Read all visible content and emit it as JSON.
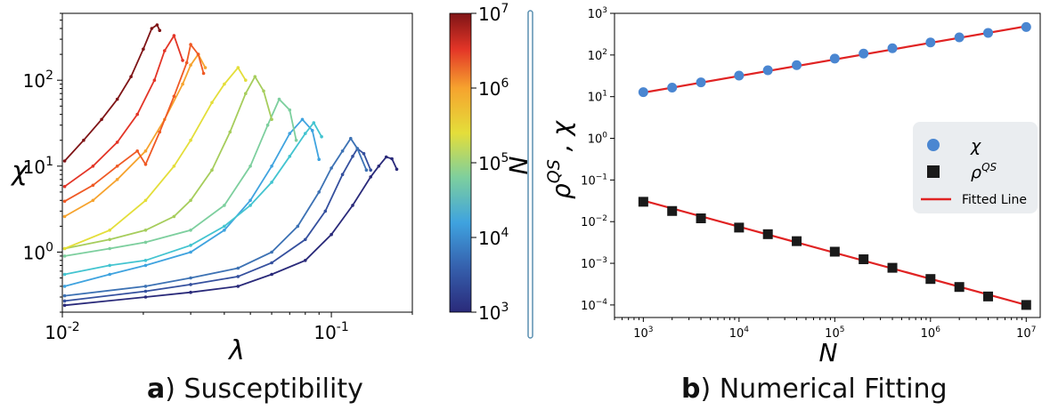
{
  "captions": {
    "a_letter": "a",
    "a_text": ") Susceptibility",
    "b_letter": "b",
    "b_text": ") Numerical Fitting"
  },
  "chart_data": [
    {
      "type": "line",
      "panel": "a",
      "xlabel": "λ",
      "ylabel": "χ",
      "xscale": "log",
      "yscale": "log",
      "xlim": [
        0.01,
        0.2
      ],
      "ylim": [
        0.2,
        600
      ],
      "x_ticks": [
        {
          "value": 0.01,
          "base": "10",
          "exp": "-2"
        },
        {
          "value": 0.1,
          "base": "10",
          "exp": "-1"
        }
      ],
      "y_ticks": [
        {
          "value": 1,
          "base": "10",
          "exp": "0"
        },
        {
          "value": 10,
          "base": "10",
          "exp": "1"
        },
        {
          "value": 100,
          "base": "10",
          "exp": "2"
        }
      ],
      "colorbar": {
        "label": "N",
        "range": [
          1000,
          10000000
        ],
        "ticks": [
          {
            "value": 1000,
            "base": "10",
            "exp": "3"
          },
          {
            "value": 10000,
            "base": "10",
            "exp": "4"
          },
          {
            "value": 100000,
            "base": "10",
            "exp": "5"
          },
          {
            "value": 1000000,
            "base": "10",
            "exp": "6"
          },
          {
            "value": 10000000,
            "base": "10",
            "exp": "7"
          }
        ]
      },
      "series": [
        {
          "N": 1000,
          "color": "#2a2a7a",
          "peak_lambda": 0.16,
          "peak_chi": 13,
          "x": [
            0.0102,
            0.0204,
            0.03,
            0.045,
            0.06,
            0.08,
            0.1,
            0.12,
            0.14,
            0.15,
            0.16,
            0.168,
            0.175
          ],
          "y": [
            0.24,
            0.3,
            0.34,
            0.4,
            0.55,
            0.8,
            1.6,
            3.5,
            7.5,
            10.0,
            12.8,
            12.2,
            9.2
          ]
        },
        {
          "N": 2000,
          "color": "#35509e",
          "peak_lambda": 0.125,
          "peak_chi": 16,
          "x": [
            0.0102,
            0.0204,
            0.03,
            0.045,
            0.06,
            0.08,
            0.095,
            0.11,
            0.12,
            0.125,
            0.132,
            0.14
          ],
          "y": [
            0.27,
            0.35,
            0.42,
            0.52,
            0.75,
            1.4,
            3.0,
            8.0,
            13.0,
            16.0,
            14.0,
            9.0
          ]
        },
        {
          "N": 4000,
          "color": "#3d72b4",
          "peak_lambda": 0.118,
          "peak_chi": 21,
          "x": [
            0.0102,
            0.0204,
            0.03,
            0.045,
            0.06,
            0.075,
            0.09,
            0.1,
            0.11,
            0.118,
            0.125,
            0.135
          ],
          "y": [
            0.31,
            0.4,
            0.5,
            0.65,
            1.0,
            2.0,
            5.0,
            9.5,
            15.0,
            21.0,
            16.0,
            9.0
          ]
        },
        {
          "N": 10000,
          "color": "#3fa3df",
          "peak_lambda": 0.078,
          "peak_chi": 35,
          "x": [
            0.0102,
            0.015,
            0.0204,
            0.03,
            0.04,
            0.05,
            0.06,
            0.07,
            0.078,
            0.085,
            0.09
          ],
          "y": [
            0.4,
            0.55,
            0.7,
            1.0,
            1.8,
            4.0,
            10.0,
            24.0,
            35.0,
            26.0,
            12.0
          ]
        },
        {
          "N": 20000,
          "color": "#43c4d0",
          "peak_lambda": 0.086,
          "peak_chi": 32,
          "x": [
            0.0102,
            0.015,
            0.0204,
            0.03,
            0.04,
            0.05,
            0.06,
            0.07,
            0.08,
            0.086,
            0.092
          ],
          "y": [
            0.55,
            0.7,
            0.8,
            1.2,
            2.0,
            3.5,
            6.5,
            13.0,
            24.0,
            32.0,
            22.0
          ]
        },
        {
          "N": 50000,
          "color": "#7dcf9e",
          "peak_lambda": 0.064,
          "peak_chi": 60,
          "x": [
            0.0102,
            0.015,
            0.0204,
            0.03,
            0.04,
            0.05,
            0.058,
            0.064,
            0.07,
            0.074
          ],
          "y": [
            0.9,
            1.1,
            1.3,
            1.8,
            3.5,
            10.0,
            30.0,
            60.0,
            45.0,
            20.0
          ]
        },
        {
          "N": 100000,
          "color": "#a6cd5c",
          "peak_lambda": 0.052,
          "peak_chi": 110,
          "x": [
            0.0102,
            0.015,
            0.0204,
            0.026,
            0.03,
            0.036,
            0.042,
            0.048,
            0.052,
            0.056,
            0.06
          ],
          "y": [
            1.1,
            1.4,
            1.8,
            2.6,
            4.0,
            9.0,
            25.0,
            70.0,
            110.0,
            75.0,
            35.0
          ]
        },
        {
          "N": 300000,
          "color": "#e4de3a",
          "peak_lambda": 0.045,
          "peak_chi": 140,
          "x": [
            0.0102,
            0.015,
            0.0204,
            0.026,
            0.03,
            0.036,
            0.04,
            0.045,
            0.048
          ],
          "y": [
            1.1,
            1.8,
            4.0,
            10.0,
            20.0,
            55.0,
            90.0,
            140.0,
            100.0
          ]
        },
        {
          "N": 1000000,
          "color": "#f6a32e",
          "peak_lambda": 0.032,
          "peak_chi": 200,
          "x": [
            0.0102,
            0.013,
            0.016,
            0.0204,
            0.024,
            0.028,
            0.03,
            0.032,
            0.034
          ],
          "y": [
            2.6,
            4.0,
            7.0,
            15.0,
            35.0,
            90.0,
            150.0,
            200.0,
            140.0
          ]
        },
        {
          "N": 2000000,
          "color": "#ef5a25",
          "peak_lambda": 0.03,
          "peak_chi": 260,
          "x": [
            0.0102,
            0.013,
            0.016,
            0.019,
            0.0204,
            0.023,
            0.026,
            0.029,
            0.03,
            0.032,
            0.0335
          ],
          "y": [
            3.9,
            6.0,
            10.0,
            15.0,
            10.5,
            25.0,
            65.0,
            160.0,
            260.0,
            200.0,
            120.0
          ]
        },
        {
          "N": 4000000,
          "color": "#e33527",
          "peak_lambda": 0.026,
          "peak_chi": 330,
          "x": [
            0.0102,
            0.013,
            0.016,
            0.019,
            0.022,
            0.024,
            0.026,
            0.028
          ],
          "y": [
            5.8,
            10.0,
            19.0,
            40.0,
            100.0,
            220.0,
            330.0,
            170.0
          ]
        },
        {
          "N": 10000000,
          "color": "#7f1416",
          "peak_lambda": 0.0225,
          "peak_chi": 440,
          "x": [
            0.0102,
            0.012,
            0.014,
            0.016,
            0.018,
            0.02,
            0.0215,
            0.0225,
            0.023
          ],
          "y": [
            11.5,
            20.0,
            35.0,
            60.0,
            110.0,
            230.0,
            400.0,
            440.0,
            380.0
          ]
        }
      ]
    },
    {
      "type": "scatter",
      "panel": "b",
      "xlabel": "N",
      "ylabel": "ρ^QS , χ",
      "xscale": "log",
      "yscale": "log",
      "xlim": [
        500,
        14000000
      ],
      "ylim": [
        5e-05,
        1000
      ],
      "x_ticks": [
        {
          "value": 1000,
          "base": "10",
          "exp": "3"
        },
        {
          "value": 10000,
          "base": "10",
          "exp": "4"
        },
        {
          "value": 100000,
          "base": "10",
          "exp": "5"
        },
        {
          "value": 1000000,
          "base": "10",
          "exp": "6"
        },
        {
          "value": 10000000,
          "base": "10",
          "exp": "7"
        }
      ],
      "y_ticks": [
        {
          "value": 0.0001,
          "base": "10",
          "exp": "−4"
        },
        {
          "value": 0.001,
          "base": "10",
          "exp": "−3"
        },
        {
          "value": 0.01,
          "base": "10",
          "exp": "−2"
        },
        {
          "value": 0.1,
          "base": "10",
          "exp": "−1"
        },
        {
          "value": 1,
          "base": "10",
          "exp": "0"
        },
        {
          "value": 10,
          "base": "10",
          "exp": "1"
        },
        {
          "value": 100,
          "base": "10",
          "exp": "2"
        },
        {
          "value": 1000,
          "base": "10",
          "exp": "3"
        }
      ],
      "x": [
        1000,
        2000,
        4000,
        10000,
        20000,
        40000,
        100000,
        200000,
        400000,
        1000000,
        2000000,
        4000000,
        10000000
      ],
      "series": [
        {
          "name": "χ",
          "marker": "circle",
          "color": "#4a86d1",
          "values": [
            12.8,
            16.5,
            22,
            32,
            43,
            57,
            82,
            108,
            145,
            200,
            265,
            340,
            470
          ]
        },
        {
          "name": "ρ",
          "name_sup": "QS",
          "marker": "square",
          "color": "#1a1a1a",
          "values": [
            0.03,
            0.018,
            0.012,
            0.0072,
            0.005,
            0.0034,
            0.0019,
            0.00125,
            0.00078,
            0.00042,
            0.00027,
            0.00016,
            0.0001
          ]
        }
      ],
      "fits": [
        {
          "series": "χ",
          "color": "#e02323",
          "from": [
            1000,
            12.5
          ],
          "to": [
            10000000,
            490
          ]
        },
        {
          "series": "ρ",
          "color": "#e02323",
          "from": [
            1000,
            0.032
          ],
          "to": [
            10000000,
            0.0001
          ]
        }
      ],
      "legend": {
        "position": "right-middle",
        "entries": [
          {
            "label": "χ",
            "kind": "circle",
            "color": "#4a86d1"
          },
          {
            "label": "ρ",
            "sup": "QS",
            "kind": "square",
            "color": "#1a1a1a"
          },
          {
            "label": "Fitted Line",
            "kind": "line",
            "color": "#e02323"
          }
        ]
      }
    }
  ]
}
